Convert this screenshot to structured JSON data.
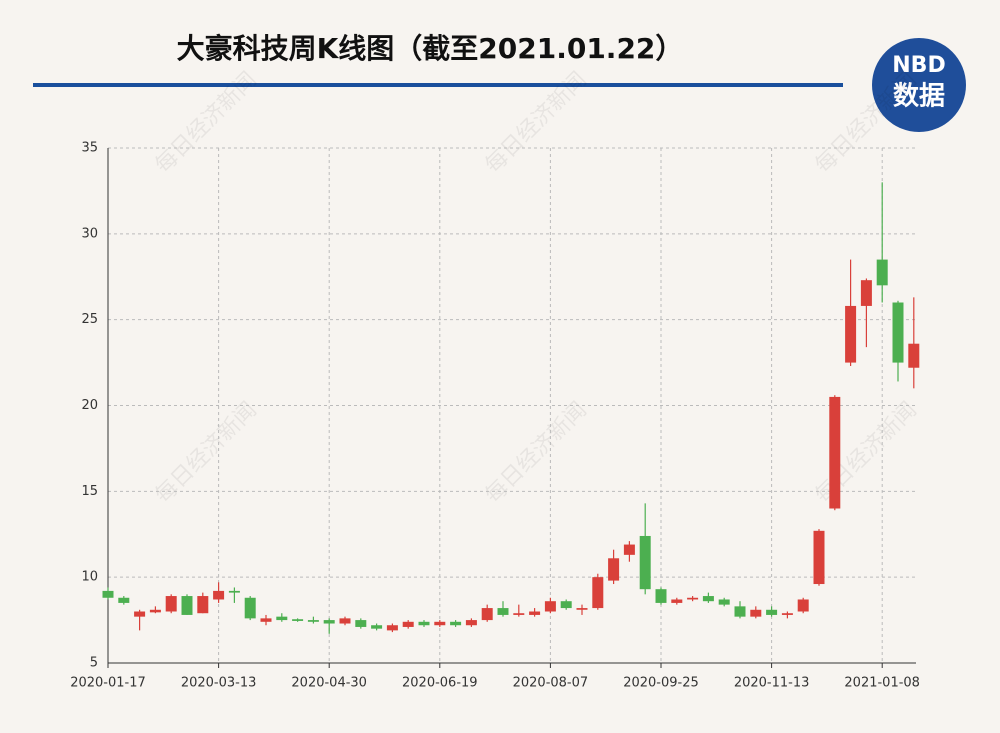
{
  "chart_data": {
    "type": "candlestick",
    "title": "大豪科技周K线图（截至2021.01.22）",
    "logo": {
      "brand": "NBD",
      "label": "数据"
    },
    "watermark": "每日经济新闻",
    "categories": [
      "2020-01-17",
      null,
      null,
      null,
      null,
      null,
      null,
      "2020-03-13",
      null,
      null,
      null,
      null,
      null,
      null,
      "2020-04-30",
      null,
      null,
      null,
      null,
      null,
      null,
      "2020-06-19",
      null,
      null,
      null,
      null,
      null,
      null,
      "2020-08-07",
      null,
      null,
      null,
      null,
      null,
      null,
      "2020-09-25",
      null,
      null,
      null,
      null,
      null,
      null,
      "2020-11-13",
      null,
      null,
      null,
      null,
      null,
      null,
      "2021-01-08",
      null,
      null
    ],
    "open": [
      9.2,
      8.8,
      7.7,
      7.95,
      8.0,
      8.9,
      7.9,
      8.7,
      9.2,
      8.8,
      7.4,
      7.7,
      7.55,
      7.5,
      7.5,
      7.3,
      7.5,
      7.2,
      6.9,
      7.1,
      7.4,
      7.2,
      7.4,
      7.2,
      7.5,
      8.2,
      7.8,
      7.8,
      8.0,
      8.6,
      8.1,
      8.2,
      9.8,
      11.3,
      12.4,
      9.3,
      8.5,
      8.7,
      8.9,
      8.7,
      8.3,
      7.7,
      8.1,
      7.8,
      8.0,
      9.6,
      14.0,
      22.5,
      25.8,
      28.5,
      26.0,
      22.2
    ],
    "high": [
      9.4,
      8.9,
      8.1,
      8.3,
      9.0,
      9.0,
      9.1,
      9.7,
      9.4,
      8.9,
      7.8,
      7.9,
      7.6,
      7.7,
      7.6,
      7.7,
      7.6,
      7.3,
      7.3,
      7.5,
      7.5,
      7.5,
      7.5,
      7.6,
      8.4,
      8.6,
      8.4,
      8.2,
      8.8,
      8.7,
      8.4,
      10.2,
      11.6,
      12.1,
      14.3,
      9.4,
      8.8,
      8.9,
      9.1,
      8.8,
      8.6,
      8.3,
      8.3,
      8.0,
      8.8,
      12.8,
      20.6,
      28.5,
      27.4,
      33.0,
      26.1,
      26.3
    ],
    "low": [
      8.7,
      8.4,
      6.9,
      7.9,
      7.9,
      7.8,
      7.9,
      8.5,
      8.5,
      7.5,
      7.2,
      7.4,
      7.4,
      7.3,
      6.7,
      7.2,
      7.0,
      6.9,
      6.8,
      7.0,
      7.1,
      7.1,
      7.1,
      7.1,
      7.4,
      7.7,
      7.7,
      7.7,
      7.9,
      8.1,
      7.8,
      8.1,
      9.6,
      10.9,
      9.0,
      8.4,
      8.4,
      8.6,
      8.5,
      8.3,
      7.6,
      7.6,
      7.7,
      7.6,
      7.9,
      9.5,
      13.9,
      22.3,
      23.4,
      26.0,
      21.4,
      21.0
    ],
    "close": [
      8.8,
      8.5,
      8.0,
      8.1,
      8.9,
      7.8,
      8.9,
      9.2,
      9.1,
      7.6,
      7.6,
      7.5,
      7.45,
      7.4,
      7.3,
      7.6,
      7.1,
      7.0,
      7.2,
      7.4,
      7.2,
      7.4,
      7.2,
      7.5,
      8.2,
      7.8,
      7.9,
      8.0,
      8.6,
      8.2,
      8.2,
      10.0,
      11.1,
      11.9,
      9.3,
      8.5,
      8.7,
      8.8,
      8.6,
      8.4,
      7.7,
      8.1,
      7.8,
      7.9,
      8.7,
      12.7,
      20.5,
      25.8,
      27.3,
      27.0,
      22.5,
      23.6
    ],
    "up_color": "#d9403a",
    "down_color": "#4caf50",
    "ylim": [
      5,
      35
    ],
    "yticks": [
      5,
      10,
      15,
      20,
      25,
      30,
      35
    ],
    "grid": true
  }
}
